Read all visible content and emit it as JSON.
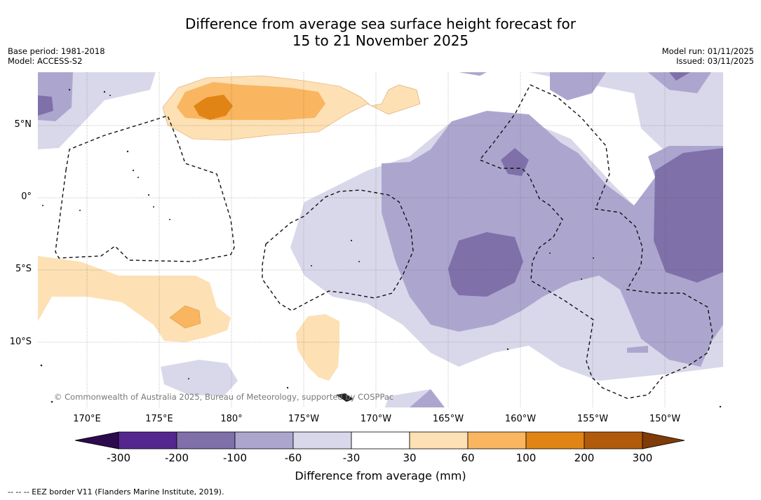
{
  "title": {
    "line1": "Difference from average sea surface height forecast for",
    "line2": "15 to 21 November 2025"
  },
  "meta_left": {
    "base_period": "Base period: 1981-2018",
    "model": "Model: ACCESS-S2"
  },
  "meta_right": {
    "model_run": "Model run: 01/11/2025",
    "issued": "Issued: 03/11/2025"
  },
  "map": {
    "latitude_labels": [
      "5°N",
      "0°",
      "5°S",
      "10°S"
    ],
    "longitude_labels": [
      "170°E",
      "175°E",
      "180°",
      "175°W",
      "170°W",
      "165°W",
      "160°W",
      "155°W",
      "150°W"
    ],
    "copyright": "© Commonwealth of Australia 2025, Bureau of Meteorology, supported by COSPPac"
  },
  "colorbar": {
    "label": "Difference from average (mm)",
    "ticks": [
      "-300",
      "-200",
      "-100",
      "-60",
      "-30",
      "30",
      "60",
      "100",
      "200",
      "300"
    ],
    "colors": [
      "#2d0a4e",
      "#54278f",
      "#7f70aa",
      "#aca6cf",
      "#d8d8ea",
      "#ffffff",
      "#fde0b4",
      "#f9b55f",
      "#e08515",
      "#b25a0c",
      "#7f3b08"
    ]
  },
  "footnote": "-- -- -- EEZ border V11 (Flanders Marine Institute, 2019)."
}
